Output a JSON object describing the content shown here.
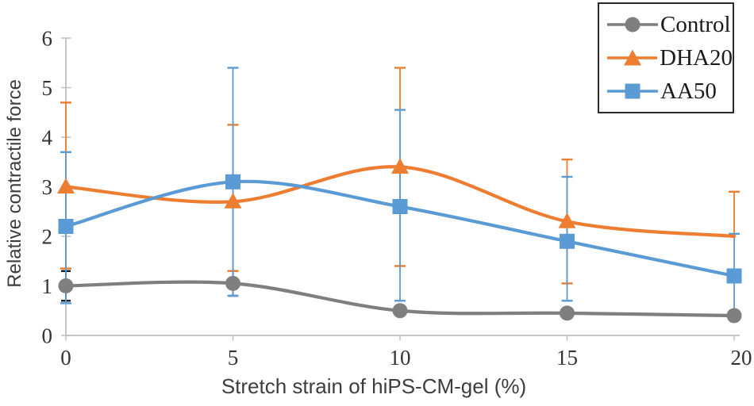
{
  "chart_data": {
    "type": "line",
    "title": "",
    "xlabel": "Stretch strain of hiPS-CM-gel (%)",
    "ylabel": "Relative contractile force",
    "x": [
      0,
      5,
      10,
      15,
      20
    ],
    "x_tick_labels": [
      "0",
      "5",
      "10",
      "15",
      "20"
    ],
    "y_ticks": [
      0,
      1,
      2,
      3,
      4,
      5,
      6
    ],
    "xlim": [
      0,
      20
    ],
    "ylim": [
      0,
      6
    ],
    "grid": false,
    "smooth_lines": true,
    "legend_position": "top-right",
    "axis_color": "#BFBFBF",
    "series": [
      {
        "name": "Control",
        "color": "#7F7F7F",
        "marker": "circle",
        "values": [
          1.0,
          1.05,
          0.5,
          0.45,
          0.4
        ],
        "error_low": [
          0.7,
          0.8,
          null,
          null,
          null
        ],
        "error_high": [
          1.3,
          1.3,
          null,
          null,
          null
        ],
        "error_color": "#1a1a1a",
        "marker_visible": [
          1,
          1,
          1,
          1,
          1
        ]
      },
      {
        "name": "DHA20",
        "color": "#ED7D31",
        "marker": "triangle",
        "values": [
          3.0,
          2.7,
          3.4,
          2.3,
          2.0
        ],
        "error_low": [
          1.35,
          1.3,
          1.4,
          1.05,
          null
        ],
        "error_high": [
          4.7,
          4.25,
          5.4,
          3.55,
          2.9
        ],
        "error_color": "#ED7D31",
        "marker_visible": [
          1,
          1,
          1,
          1,
          0
        ]
      },
      {
        "name": "AA50",
        "color": "#5B9BD5",
        "marker": "square",
        "values": [
          2.2,
          3.1,
          2.6,
          1.9,
          1.2
        ],
        "error_low": [
          0.65,
          0.8,
          0.7,
          0.7,
          0.4
        ],
        "error_high": [
          3.7,
          5.4,
          4.55,
          3.2,
          2.05
        ],
        "error_color": "#5B9BD5",
        "marker_visible": [
          1,
          1,
          1,
          1,
          1
        ]
      }
    ]
  }
}
